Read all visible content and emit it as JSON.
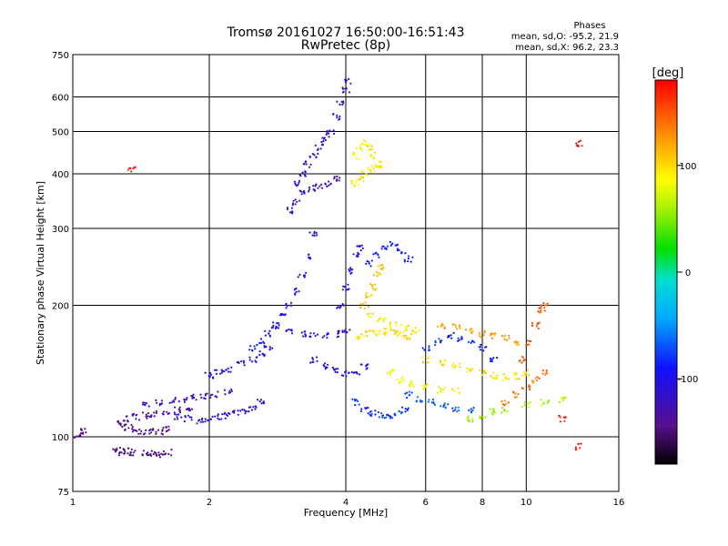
{
  "chart_data": {
    "type": "scatter",
    "title": "Tromsø 20161027 16:50:00-16:51:43",
    "subtitle": "RwPretec (8p)",
    "xlabel": "Frequency [MHz]",
    "ylabel": "Stationary phase Virtual Height [km]",
    "x_scale": "log",
    "y_scale": "log",
    "xlim": [
      1,
      16
    ],
    "ylim": [
      75,
      750
    ],
    "x_ticks": [
      "1",
      "2",
      "4",
      "6",
      "8",
      "10",
      "16"
    ],
    "y_ticks": [
      "75",
      "100",
      "200",
      "300",
      "400",
      "500",
      "600",
      "750"
    ],
    "grid": true,
    "stats": {
      "heading": "Phases",
      "line_o": "mean, sd,O: -95.2, 21.9",
      "line_x": "mean, sd,X:  96.2, 23.3"
    },
    "colorbar": {
      "label": "[deg]",
      "range": [
        -180,
        180
      ],
      "ticks": [
        "100",
        "0",
        "-100"
      ],
      "tick_values": [
        100,
        0,
        -100
      ]
    },
    "colors": {
      "low_phase": "#2a1fc8",
      "high_phase": "#ffd200"
    },
    "series": [
      {
        "phase": -145,
        "points": [
          [
            1.03,
            101
          ],
          [
            1.05,
            103
          ],
          [
            1.25,
            93
          ],
          [
            1.28,
            92
          ],
          [
            1.32,
            93
          ],
          [
            1.35,
            92
          ],
          [
            1.45,
            92
          ],
          [
            1.5,
            92
          ],
          [
            1.55,
            91
          ],
          [
            1.62,
            92
          ]
        ]
      },
      {
        "phase": -140,
        "points": [
          [
            1.28,
            107
          ],
          [
            1.32,
            105
          ],
          [
            1.36,
            104
          ],
          [
            1.42,
            103
          ],
          [
            1.48,
            103
          ],
          [
            1.55,
            102
          ],
          [
            1.6,
            104
          ]
        ]
      },
      {
        "phase": -130,
        "points": [
          [
            1.3,
            110
          ],
          [
            1.38,
            111
          ],
          [
            1.45,
            112
          ],
          [
            1.52,
            113
          ],
          [
            1.6,
            114
          ],
          [
            1.7,
            115
          ],
          [
            1.8,
            116
          ]
        ]
      },
      {
        "phase": -120,
        "points": [
          [
            1.45,
            118
          ],
          [
            1.55,
            120
          ],
          [
            1.65,
            121
          ],
          [
            1.75,
            122
          ],
          [
            1.85,
            123
          ],
          [
            1.95,
            124
          ],
          [
            2.05,
            125
          ],
          [
            2.2,
            127
          ]
        ]
      },
      {
        "phase": -110,
        "points": [
          [
            1.7,
            111
          ],
          [
            1.8,
            110
          ],
          [
            1.9,
            109
          ],
          [
            2.0,
            110
          ],
          [
            2.1,
            111
          ],
          [
            2.2,
            112
          ],
          [
            2.3,
            113
          ],
          [
            2.4,
            115
          ],
          [
            2.5,
            117
          ],
          [
            2.6,
            120
          ]
        ]
      },
      {
        "phase": -100,
        "points": [
          [
            2.0,
            138
          ],
          [
            2.1,
            140
          ],
          [
            2.2,
            143
          ],
          [
            2.35,
            147
          ],
          [
            2.5,
            150
          ],
          [
            2.6,
            155
          ],
          [
            2.7,
            160
          ]
        ]
      },
      {
        "phase": -95,
        "points": [
          [
            2.5,
            160
          ],
          [
            2.6,
            165
          ],
          [
            2.7,
            172
          ],
          [
            2.8,
            180
          ],
          [
            2.9,
            190
          ],
          [
            3.0,
            200
          ],
          [
            3.1,
            215
          ],
          [
            3.2,
            235
          ],
          [
            3.3,
            260
          ],
          [
            3.4,
            290
          ]
        ]
      },
      {
        "phase": -115,
        "points": [
          [
            3.1,
            380
          ],
          [
            3.2,
            400
          ],
          [
            3.3,
            420
          ],
          [
            3.4,
            440
          ],
          [
            3.5,
            460
          ],
          [
            3.6,
            480
          ],
          [
            3.7,
            500
          ],
          [
            3.8,
            540
          ],
          [
            3.9,
            580
          ],
          [
            4.0,
            620
          ],
          [
            4.05,
            650
          ]
        ]
      },
      {
        "phase": -120,
        "points": [
          [
            3.0,
            330
          ],
          [
            3.1,
            345
          ],
          [
            3.2,
            360
          ],
          [
            3.35,
            370
          ],
          [
            3.5,
            375
          ],
          [
            3.65,
            380
          ],
          [
            3.8,
            390
          ]
        ]
      },
      {
        "phase": -110,
        "points": [
          [
            2.8,
            180
          ],
          [
            3.0,
            175
          ],
          [
            3.2,
            172
          ],
          [
            3.4,
            170
          ],
          [
            3.6,
            170
          ],
          [
            3.8,
            172
          ],
          [
            4.0,
            175
          ]
        ]
      },
      {
        "phase": -100,
        "points": [
          [
            3.4,
            150
          ],
          [
            3.6,
            145
          ],
          [
            3.8,
            142
          ],
          [
            4.0,
            140
          ],
          [
            4.2,
            141
          ],
          [
            4.4,
            145
          ]
        ]
      },
      {
        "phase": -105,
        "points": [
          [
            3.9,
            200
          ],
          [
            4.0,
            220
          ],
          [
            4.1,
            240
          ],
          [
            4.2,
            260
          ],
          [
            4.3,
            270
          ]
        ]
      },
      {
        "phase": -80,
        "points": [
          [
            4.2,
            120
          ],
          [
            4.4,
            115
          ],
          [
            4.6,
            113
          ],
          [
            4.8,
            112
          ],
          [
            5.0,
            112
          ],
          [
            5.2,
            113
          ],
          [
            5.4,
            115
          ]
        ]
      },
      {
        "phase": -90,
        "points": [
          [
            4.5,
            250
          ],
          [
            4.7,
            260
          ],
          [
            4.9,
            270
          ],
          [
            5.1,
            275
          ],
          [
            5.3,
            265
          ],
          [
            5.5,
            255
          ]
        ]
      },
      {
        "phase": -70,
        "points": [
          [
            5.5,
            125
          ],
          [
            5.8,
            122
          ],
          [
            6.2,
            120
          ],
          [
            6.6,
            118
          ],
          [
            7.0,
            116
          ],
          [
            7.5,
            115
          ]
        ]
      },
      {
        "phase": -85,
        "points": [
          [
            6.0,
            160
          ],
          [
            6.4,
            165
          ],
          [
            6.8,
            170
          ],
          [
            7.2,
            168
          ],
          [
            7.6,
            165
          ],
          [
            8.0,
            160
          ],
          [
            8.5,
            150
          ]
        ]
      },
      {
        "phase": 90,
        "points": [
          [
            4.2,
            440
          ],
          [
            4.3,
            460
          ],
          [
            4.4,
            470
          ],
          [
            4.5,
            460
          ],
          [
            4.6,
            440
          ],
          [
            4.7,
            420
          ]
        ]
      },
      {
        "phase": 95,
        "points": [
          [
            4.2,
            380
          ],
          [
            4.3,
            390
          ],
          [
            4.4,
            400
          ],
          [
            4.55,
            410
          ],
          [
            4.7,
            415
          ]
        ]
      },
      {
        "phase": 100,
        "points": [
          [
            4.3,
            170
          ],
          [
            4.5,
            172
          ],
          [
            4.7,
            173
          ],
          [
            4.9,
            174
          ],
          [
            5.1,
            173
          ],
          [
            5.3,
            172
          ],
          [
            5.5,
            170
          ]
        ]
      },
      {
        "phase": 110,
        "points": [
          [
            4.4,
            200
          ],
          [
            4.5,
            210
          ],
          [
            4.6,
            220
          ],
          [
            4.7,
            235
          ],
          [
            4.8,
            245
          ]
        ]
      },
      {
        "phase": 90,
        "points": [
          [
            4.5,
            190
          ],
          [
            4.8,
            185
          ],
          [
            5.1,
            180
          ],
          [
            5.4,
            178
          ],
          [
            5.7,
            175
          ]
        ]
      },
      {
        "phase": 85,
        "points": [
          [
            5.0,
            140
          ],
          [
            5.3,
            135
          ],
          [
            5.6,
            132
          ],
          [
            6.0,
            130
          ],
          [
            6.5,
            128
          ],
          [
            7.0,
            127
          ]
        ]
      },
      {
        "phase": 100,
        "points": [
          [
            6.0,
            150
          ],
          [
            6.5,
            148
          ],
          [
            7.0,
            145
          ],
          [
            7.5,
            143
          ],
          [
            8.0,
            140
          ],
          [
            8.5,
            138
          ],
          [
            9.0,
            137
          ],
          [
            9.5,
            138
          ],
          [
            10.0,
            140
          ]
        ]
      },
      {
        "phase": 120,
        "points": [
          [
            6.5,
            180
          ],
          [
            7.0,
            178
          ],
          [
            7.5,
            175
          ],
          [
            8.0,
            172
          ],
          [
            8.5,
            170
          ],
          [
            9.0,
            168
          ],
          [
            9.5,
            165
          ]
        ]
      },
      {
        "phase": 140,
        "points": [
          [
            9.0,
            120
          ],
          [
            9.5,
            125
          ],
          [
            10.0,
            130
          ],
          [
            10.5,
            135
          ],
          [
            11.0,
            140
          ]
        ]
      },
      {
        "phase": 150,
        "points": [
          [
            9.8,
            150
          ],
          [
            10.2,
            165
          ],
          [
            10.5,
            180
          ],
          [
            10.8,
            195
          ],
          [
            11.0,
            200
          ]
        ]
      },
      {
        "phase": 60,
        "points": [
          [
            7.5,
            110
          ],
          [
            8.0,
            112
          ],
          [
            8.5,
            114
          ],
          [
            9.0,
            115
          ],
          [
            10.0,
            118
          ],
          [
            11.0,
            120
          ],
          [
            12.0,
            122
          ]
        ]
      },
      {
        "phase": 175,
        "points": [
          [
            13.0,
            470
          ],
          [
            12.0,
            110
          ],
          [
            13.0,
            95
          ],
          [
            1.35,
            410
          ]
        ]
      }
    ]
  }
}
